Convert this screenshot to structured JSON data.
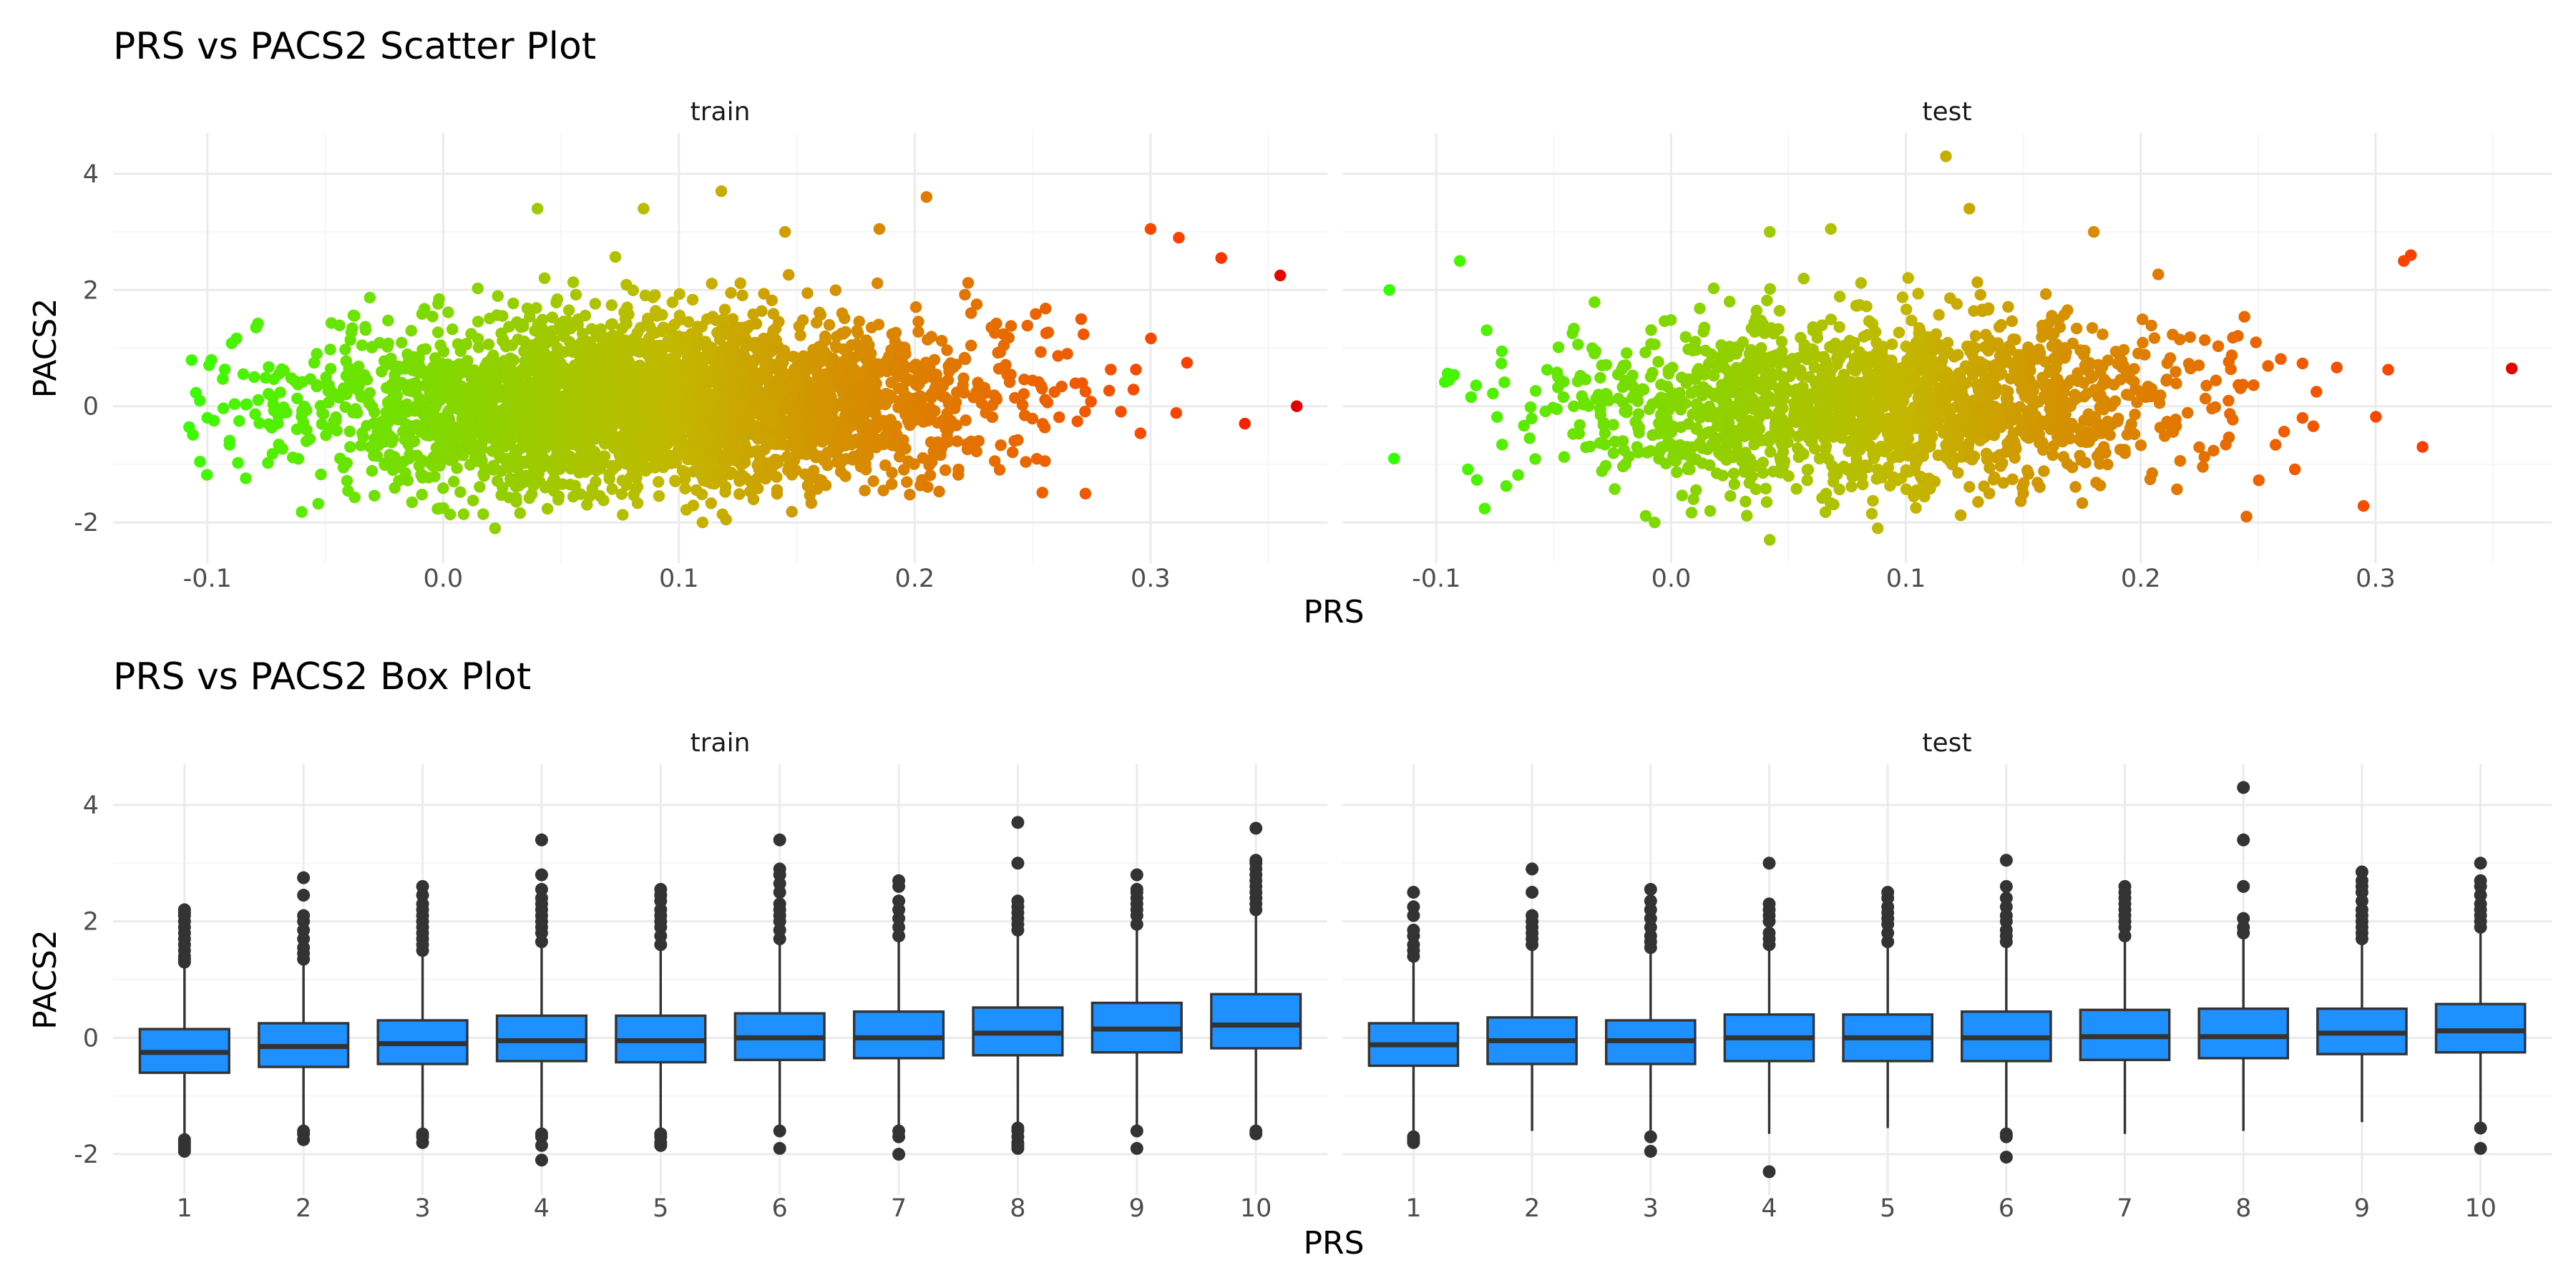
{
  "colors": {
    "low": "#33ff00",
    "mid": "#c2b800",
    "high": "#ff3a00",
    "extreme": "#e30000",
    "box_fill": "#1e90ff",
    "box_stroke": "#333333",
    "outlier": "#333333"
  },
  "chart_data": [
    {
      "type": "scatter",
      "title": "PRS vs PACS2 Scatter Plot",
      "xlabel": "PRS",
      "ylabel": "PACS2",
      "xlim": [
        -0.14,
        0.375
      ],
      "ylim": [
        -2.7,
        4.7
      ],
      "xticks": [
        -0.1,
        0.0,
        0.1,
        0.2,
        0.3
      ],
      "xtick_labels": [
        "-0.1",
        "0.0",
        "0.1",
        "0.2",
        "0.3"
      ],
      "yticks": [
        -2,
        0,
        2,
        4
      ],
      "ytick_labels": [
        "-2",
        "0",
        "2",
        "4"
      ],
      "grid": true,
      "color_by": "PRS",
      "facets": [
        {
          "name": "train",
          "x_range": [
            -0.11,
            0.365
          ],
          "center_x": 0.09,
          "spread_x": 0.07,
          "n_points": 3400,
          "notable_points": [
            {
              "x": 0.118,
              "y": 3.7
            },
            {
              "x": 0.205,
              "y": 3.6
            },
            {
              "x": 0.04,
              "y": 3.4
            },
            {
              "x": 0.085,
              "y": 3.4
            },
            {
              "x": 0.145,
              "y": 3.0
            },
            {
              "x": 0.185,
              "y": 3.05
            },
            {
              "x": 0.312,
              "y": 2.9
            },
            {
              "x": 0.3,
              "y": 3.05
            },
            {
              "x": 0.355,
              "y": 2.25
            },
            {
              "x": 0.362,
              "y": 0.0
            },
            {
              "x": 0.34,
              "y": -0.3
            },
            {
              "x": 0.022,
              "y": -2.1
            },
            {
              "x": 0.11,
              "y": -2.0
            },
            {
              "x": 0.12,
              "y": -1.95
            },
            {
              "x": -0.1,
              "y": -0.2
            },
            {
              "x": 0.33,
              "y": 2.55
            }
          ]
        },
        {
          "name": "test",
          "x_range": [
            -0.12,
            0.36
          ],
          "center_x": 0.09,
          "spread_x": 0.065,
          "n_points": 1700,
          "notable_points": [
            {
              "x": 0.117,
              "y": 4.3
            },
            {
              "x": 0.127,
              "y": 3.4
            },
            {
              "x": 0.068,
              "y": 3.05
            },
            {
              "x": 0.042,
              "y": 3.0
            },
            {
              "x": 0.18,
              "y": 3.0
            },
            {
              "x": -0.12,
              "y": 2.0
            },
            {
              "x": -0.09,
              "y": 2.5
            },
            {
              "x": 0.315,
              "y": 2.6
            },
            {
              "x": 0.312,
              "y": 2.5
            },
            {
              "x": 0.358,
              "y": 0.65
            },
            {
              "x": 0.042,
              "y": -2.3
            },
            {
              "x": 0.088,
              "y": -2.1
            },
            {
              "x": -0.118,
              "y": -0.9
            },
            {
              "x": -0.007,
              "y": -2.0
            },
            {
              "x": 0.32,
              "y": -0.7
            },
            {
              "x": 0.245,
              "y": -1.9
            }
          ]
        }
      ]
    },
    {
      "type": "box",
      "title": "PRS vs PACS2 Box Plot",
      "xlabel": "PRS",
      "ylabel": "PACS2",
      "categories": [
        "1",
        "2",
        "3",
        "4",
        "5",
        "6",
        "7",
        "8",
        "9",
        "10"
      ],
      "ylim": [
        -2.7,
        4.7
      ],
      "yticks": [
        -2,
        0,
        2,
        4
      ],
      "ytick_labels": [
        "-2",
        "0",
        "2",
        "4"
      ],
      "grid": true,
      "facets": [
        {
          "name": "train",
          "boxes": [
            {
              "q1": -0.6,
              "median": -0.25,
              "q3": 0.15,
              "lower": -1.7,
              "upper": 1.25,
              "outliers": [
                -1.75,
                -1.8,
                -1.85,
                -1.9,
                -1.95,
                1.3,
                1.35,
                1.4,
                1.5,
                1.6,
                1.7,
                1.8,
                1.9,
                2.0,
                2.1,
                2.15,
                2.2
              ]
            },
            {
              "q1": -0.5,
              "median": -0.15,
              "q3": 0.25,
              "lower": -1.55,
              "upper": 1.3,
              "outliers": [
                -1.6,
                -1.65,
                -1.75,
                1.35,
                1.45,
                1.55,
                1.7,
                1.85,
                2.0,
                2.1,
                2.45,
                2.75
              ]
            },
            {
              "q1": -0.45,
              "median": -0.1,
              "q3": 0.3,
              "lower": -1.6,
              "upper": 1.45,
              "outliers": [
                -1.65,
                -1.7,
                -1.8,
                1.5,
                1.6,
                1.7,
                1.8,
                1.9,
                2.0,
                2.1,
                2.2,
                2.3,
                2.45,
                2.6
              ]
            },
            {
              "q1": -0.4,
              "median": -0.05,
              "q3": 0.38,
              "lower": -1.6,
              "upper": 1.6,
              "outliers": [
                -1.65,
                -1.7,
                -1.85,
                -2.1,
                1.65,
                1.8,
                1.9,
                2.0,
                2.1,
                2.2,
                2.3,
                2.4,
                2.55,
                2.8,
                3.4
              ]
            },
            {
              "q1": -0.42,
              "median": -0.05,
              "q3": 0.38,
              "lower": -1.6,
              "upper": 1.55,
              "outliers": [
                -1.65,
                -1.7,
                -1.8,
                -1.85,
                1.6,
                1.75,
                1.9,
                2.0,
                2.1,
                2.2,
                2.35,
                2.45,
                2.55
              ]
            },
            {
              "q1": -0.38,
              "median": 0.0,
              "q3": 0.42,
              "lower": -1.55,
              "upper": 1.65,
              "outliers": [
                -1.6,
                -1.9,
                1.7,
                1.85,
                2.0,
                2.1,
                2.2,
                2.3,
                2.5,
                2.65,
                2.8,
                2.9,
                3.4
              ]
            },
            {
              "q1": -0.35,
              "median": 0.0,
              "q3": 0.45,
              "lower": -1.5,
              "upper": 1.7,
              "outliers": [
                -1.6,
                -1.7,
                -2.0,
                1.75,
                1.9,
                2.05,
                2.2,
                2.35,
                2.6,
                2.7
              ]
            },
            {
              "q1": -0.3,
              "median": 0.08,
              "q3": 0.52,
              "lower": -1.5,
              "upper": 1.8,
              "outliers": [
                -1.55,
                -1.6,
                -1.7,
                -1.8,
                -1.85,
                -1.9,
                1.85,
                1.95,
                2.05,
                2.15,
                2.25,
                2.35,
                3.0,
                3.7
              ]
            },
            {
              "q1": -0.25,
              "median": 0.15,
              "q3": 0.6,
              "lower": -1.5,
              "upper": 1.9,
              "outliers": [
                -1.6,
                -1.9,
                1.95,
                2.1,
                2.2,
                2.3,
                2.4,
                2.5,
                2.55,
                2.8
              ]
            },
            {
              "q1": -0.18,
              "median": 0.22,
              "q3": 0.75,
              "lower": -1.55,
              "upper": 2.1,
              "outliers": [
                -1.6,
                -1.65,
                2.2,
                2.3,
                2.4,
                2.5,
                2.6,
                2.7,
                2.8,
                2.9,
                3.0,
                3.05,
                3.6
              ]
            }
          ]
        },
        {
          "name": "test",
          "boxes": [
            {
              "q1": -0.48,
              "median": -0.12,
              "q3": 0.25,
              "lower": -1.65,
              "upper": 1.35,
              "outliers": [
                -1.7,
                -1.75,
                -1.8,
                1.4,
                1.5,
                1.6,
                1.75,
                1.85,
                2.1,
                2.25,
                2.5
              ]
            },
            {
              "q1": -0.45,
              "median": -0.05,
              "q3": 0.35,
              "lower": -1.6,
              "upper": 1.55,
              "outliers": [
                1.6,
                1.7,
                1.8,
                1.9,
                2.0,
                2.1,
                2.5,
                2.9
              ]
            },
            {
              "q1": -0.45,
              "median": -0.05,
              "q3": 0.3,
              "lower": -1.6,
              "upper": 1.5,
              "outliers": [
                -1.7,
                -1.95,
                1.55,
                1.65,
                1.75,
                1.9,
                2.05,
                2.2,
                2.35,
                2.55
              ]
            },
            {
              "q1": -0.4,
              "median": 0.0,
              "q3": 0.4,
              "lower": -1.65,
              "upper": 1.55,
              "outliers": [
                -2.3,
                1.6,
                1.7,
                1.8,
                2.0,
                2.1,
                2.2,
                2.3,
                3.0
              ]
            },
            {
              "q1": -0.4,
              "median": 0.0,
              "q3": 0.4,
              "lower": -1.55,
              "upper": 1.6,
              "outliers": [
                1.65,
                1.8,
                1.95,
                2.05,
                2.15,
                2.25,
                2.4,
                2.5
              ]
            },
            {
              "q1": -0.4,
              "median": 0.0,
              "q3": 0.45,
              "lower": -1.6,
              "upper": 1.6,
              "outliers": [
                -1.65,
                -1.7,
                -2.05,
                1.65,
                1.75,
                1.85,
                2.0,
                2.1,
                2.25,
                2.4,
                2.6,
                3.05
              ]
            },
            {
              "q1": -0.38,
              "median": 0.02,
              "q3": 0.48,
              "lower": -1.65,
              "upper": 1.7,
              "outliers": [
                1.75,
                1.9,
                2.0,
                2.1,
                2.2,
                2.3,
                2.4,
                2.5,
                2.6
              ]
            },
            {
              "q1": -0.35,
              "median": 0.02,
              "q3": 0.5,
              "lower": -1.6,
              "upper": 1.75,
              "outliers": [
                1.8,
                1.9,
                2.05,
                2.6,
                3.4,
                4.3
              ]
            },
            {
              "q1": -0.28,
              "median": 0.08,
              "q3": 0.5,
              "lower": -1.45,
              "upper": 1.65,
              "outliers": [
                1.7,
                1.8,
                1.9,
                2.0,
                2.1,
                2.2,
                2.35,
                2.5,
                2.6,
                2.7,
                2.85
              ]
            },
            {
              "q1": -0.25,
              "median": 0.12,
              "q3": 0.58,
              "lower": -1.55,
              "upper": 1.85,
              "outliers": [
                -1.55,
                -1.9,
                1.9,
                2.0,
                2.1,
                2.2,
                2.3,
                2.45,
                2.6,
                2.7,
                3.0
              ]
            }
          ]
        }
      ]
    }
  ]
}
